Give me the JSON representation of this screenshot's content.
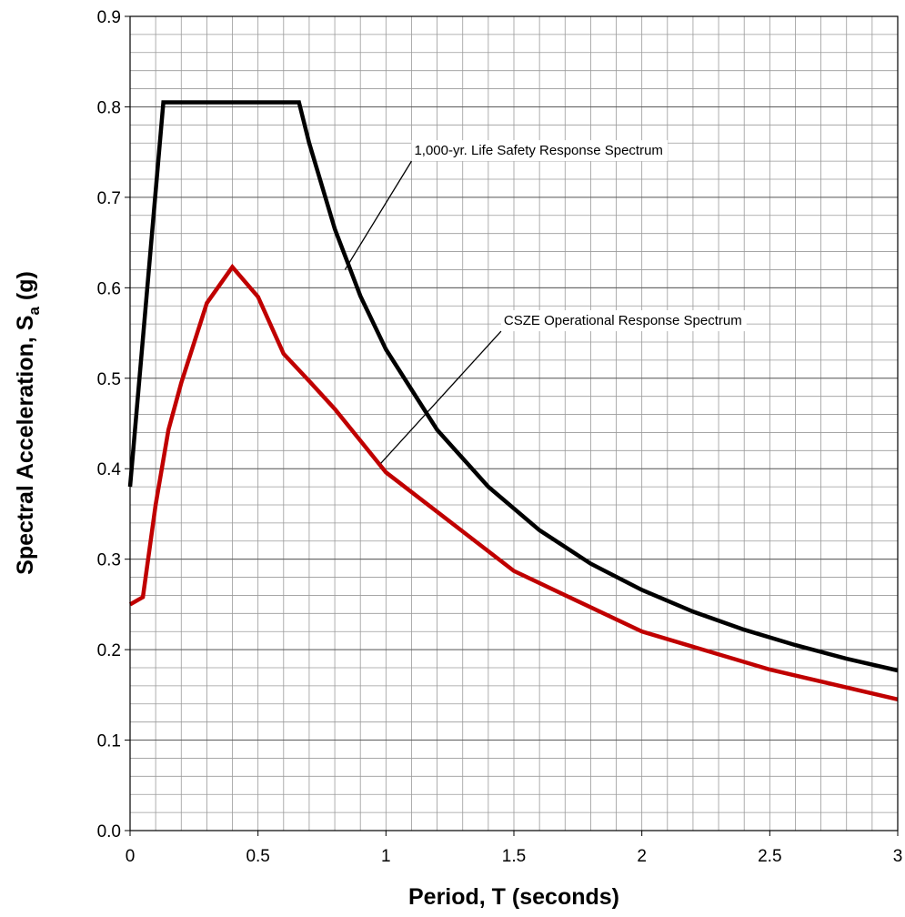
{
  "chart_data": {
    "type": "line",
    "title": "",
    "xlabel": "Period, T  (seconds)",
    "ylabel": {
      "main": "Spectral Acceleration, S",
      "sub": "a",
      "unit": " (g)"
    },
    "xlim": [
      0,
      3
    ],
    "ylim": [
      0,
      0.9
    ],
    "xticks": [
      0,
      0.5,
      1,
      1.5,
      2,
      2.5,
      3
    ],
    "xtick_labels": [
      "0",
      "0.5",
      "1",
      "1.5",
      "2",
      "2.5",
      "3"
    ],
    "yticks": [
      0,
      0.1,
      0.2,
      0.3,
      0.4,
      0.5,
      0.6,
      0.7,
      0.8,
      0.9
    ],
    "ytick_labels": [
      "0.0",
      "0.1",
      "0.2",
      "0.3",
      "0.4",
      "0.5",
      "0.6",
      "0.7",
      "0.8",
      "0.9"
    ],
    "minor_grid_x_step": 0.1,
    "minor_grid_y_step": 0.02,
    "grid": true,
    "series": [
      {
        "name": "1,000-yr. Life Safety Response Spectrum",
        "color": "#000000",
        "points": [
          [
            0,
            0.38
          ],
          [
            0.13,
            0.805
          ],
          [
            0.66,
            0.805
          ],
          [
            0.7,
            0.76
          ],
          [
            0.8,
            0.665
          ],
          [
            0.9,
            0.591
          ],
          [
            1.0,
            0.532
          ],
          [
            1.2,
            0.443
          ],
          [
            1.4,
            0.38
          ],
          [
            1.6,
            0.332
          ],
          [
            1.8,
            0.295
          ],
          [
            2.0,
            0.266
          ],
          [
            2.2,
            0.242
          ],
          [
            2.4,
            0.222
          ],
          [
            2.6,
            0.205
          ],
          [
            2.8,
            0.19
          ],
          [
            3.0,
            0.177
          ]
        ]
      },
      {
        "name": "CSZE Operational Response Spectrum",
        "color": "#c00000",
        "points": [
          [
            0,
            0.25
          ],
          [
            0.05,
            0.258
          ],
          [
            0.1,
            0.36
          ],
          [
            0.15,
            0.443
          ],
          [
            0.2,
            0.495
          ],
          [
            0.3,
            0.583
          ],
          [
            0.4,
            0.623
          ],
          [
            0.5,
            0.59
          ],
          [
            0.6,
            0.527
          ],
          [
            0.7,
            0.497
          ],
          [
            0.8,
            0.466
          ],
          [
            1.0,
            0.396
          ],
          [
            1.5,
            0.287
          ],
          [
            2.0,
            0.22
          ],
          [
            2.5,
            0.178
          ],
          [
            3.0,
            0.145
          ]
        ]
      }
    ],
    "annotations": [
      {
        "text": "1,000-yr. Life Safety Response Spectrum",
        "series": 0,
        "arrow_from": [
          1.1,
          0.74
        ],
        "arrow_to": [
          0.84,
          0.62
        ]
      },
      {
        "text": "CSZE Operational Response Spectrum",
        "series": 1,
        "arrow_from": [
          1.45,
          0.552
        ],
        "arrow_to": [
          0.98,
          0.406
        ]
      }
    ]
  }
}
